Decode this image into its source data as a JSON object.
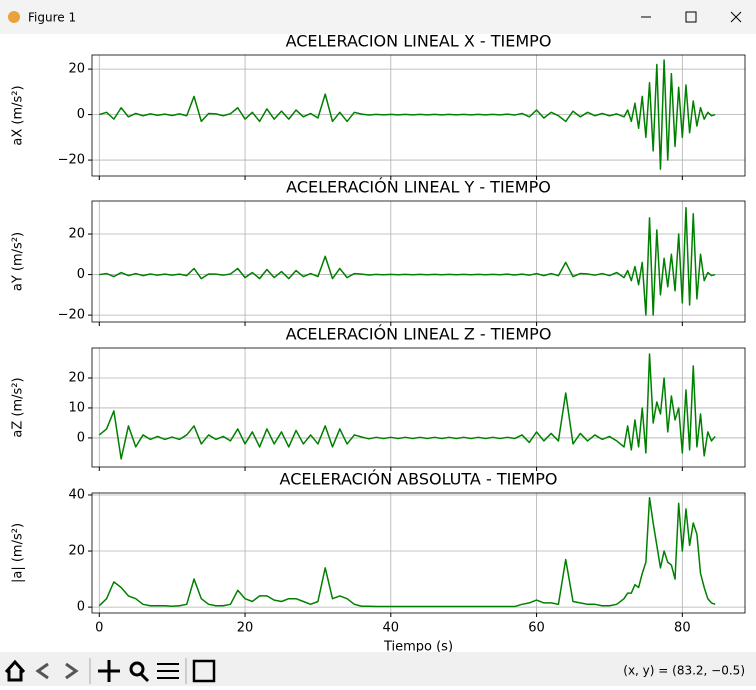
{
  "window": {
    "title": "Figure 1",
    "status": "(x, y) = (83.2, −0.5)"
  },
  "chart_data": [
    {
      "type": "line",
      "title": "ACELERACION LINEAL X - TIEMPO",
      "ylabel": "aX (m/s²)",
      "color": "#008000",
      "grid": true,
      "x": [
        0,
        1,
        2,
        3,
        4,
        5,
        6,
        7,
        8,
        9,
        10,
        11,
        12,
        13,
        14,
        15,
        16,
        17,
        18,
        19,
        20,
        21,
        22,
        23,
        24,
        25,
        26,
        27,
        28,
        29,
        30,
        31,
        32,
        33,
        34,
        35,
        36,
        37,
        38,
        39,
        40,
        41,
        42,
        43,
        44,
        45,
        46,
        47,
        48,
        49,
        50,
        51,
        52,
        53,
        54,
        55,
        56,
        57,
        58,
        59,
        60,
        61,
        62,
        63,
        64,
        65,
        66,
        67,
        68,
        69,
        70,
        71,
        72,
        72.5,
        73,
        73.5,
        74,
        74.5,
        75,
        75.5,
        76,
        76.5,
        77,
        77.5,
        78,
        78.5,
        79,
        79.5,
        80,
        80.5,
        81,
        81.5,
        82,
        82.5,
        83,
        83.5,
        84,
        84.5
      ],
      "values": [
        0,
        1,
        -2,
        3,
        -1,
        0.5,
        -0.5,
        0.3,
        -0.3,
        0.2,
        -0.4,
        0.3,
        -0.5,
        8,
        -3,
        0.5,
        0.3,
        -0.5,
        0.4,
        3,
        -2,
        1,
        -3,
        2.5,
        -2,
        1.5,
        -2,
        2,
        -1,
        0.5,
        -1.5,
        9,
        -3,
        1,
        -3,
        1,
        0.2,
        -0.2,
        0.1,
        -0.1,
        0.1,
        -0.1,
        0.1,
        -0.1,
        0.1,
        -0.1,
        0.1,
        -0.1,
        0.1,
        -0.1,
        0.1,
        -0.1,
        0.1,
        -0.1,
        0.1,
        -0.1,
        0.2,
        -0.2,
        0.5,
        -1,
        2,
        -1.5,
        1,
        -0.5,
        -3,
        1.5,
        -1,
        1,
        -0.5,
        0.5,
        -0.5,
        0.3,
        -1,
        2,
        -3,
        5,
        -6,
        8,
        -10,
        14,
        -16,
        22,
        -24,
        24,
        -20,
        18,
        -14,
        12,
        -10,
        13,
        -8,
        6,
        -5,
        3,
        -2,
        1,
        -0.5,
        0
      ],
      "xlim": [
        -1,
        88.6
      ],
      "ylim": [
        -27,
        26.2
      ],
      "xticks": [
        0,
        20,
        40,
        60,
        80
      ],
      "yticks": [
        {
          "value": -20,
          "label": "−20"
        },
        0,
        20
      ]
    },
    {
      "type": "line",
      "title": "ACELERACIÓN LINEAL Y - TIEMPO",
      "ylabel": "aY (m/s²)",
      "color": "#008000",
      "grid": true,
      "x": [
        0,
        1,
        2,
        3,
        4,
        5,
        6,
        7,
        8,
        9,
        10,
        11,
        12,
        13,
        14,
        15,
        16,
        17,
        18,
        19,
        20,
        21,
        22,
        23,
        24,
        25,
        26,
        27,
        28,
        29,
        30,
        31,
        32,
        33,
        34,
        35,
        36,
        37,
        38,
        39,
        40,
        41,
        42,
        43,
        44,
        45,
        46,
        47,
        48,
        49,
        50,
        51,
        52,
        53,
        54,
        55,
        56,
        57,
        58,
        59,
        60,
        61,
        62,
        63,
        64,
        65,
        66,
        67,
        68,
        69,
        70,
        71,
        72,
        72.5,
        73,
        73.5,
        74,
        74.5,
        75,
        75.5,
        76,
        76.5,
        77,
        77.5,
        78,
        78.5,
        79,
        79.5,
        80,
        80.5,
        81,
        81.5,
        82,
        82.5,
        83,
        83.5,
        84,
        84.5
      ],
      "values": [
        0,
        0.5,
        -1,
        1,
        -0.5,
        0.5,
        -0.5,
        0.3,
        -0.3,
        0.2,
        -0.3,
        0.2,
        -0.5,
        3,
        -2,
        0.3,
        0.2,
        -0.3,
        0.3,
        3,
        -1.5,
        1,
        -2,
        2.5,
        -1.5,
        1.5,
        -2,
        2,
        -1,
        0.5,
        -1,
        9,
        -2,
        3,
        -1.5,
        0.5,
        0.2,
        -0.2,
        0.1,
        -0.1,
        0.1,
        -0.1,
        0.1,
        -0.1,
        0.1,
        -0.1,
        0.1,
        -0.1,
        0.1,
        -0.1,
        0.1,
        -0.1,
        0.1,
        -0.1,
        0.1,
        -0.1,
        0.2,
        -0.2,
        0.2,
        -0.3,
        0.5,
        -0.5,
        0.5,
        -0.5,
        6,
        -1,
        0.5,
        0.3,
        -0.3,
        0.5,
        -0.5,
        1,
        -1.5,
        2,
        -3,
        4,
        -5,
        6,
        -20,
        28,
        -20,
        22,
        -10,
        8,
        -6,
        10,
        -8,
        20,
        -14,
        33,
        -15,
        30,
        -12,
        10,
        -3,
        1,
        -0.5,
        0
      ],
      "xlim": [
        -1,
        88.6
      ],
      "ylim": [
        -23.4,
        36.3
      ],
      "xticks": [
        0,
        20,
        40,
        60,
        80
      ],
      "yticks": [
        {
          "value": -20,
          "label": "−20"
        },
        0,
        20
      ]
    },
    {
      "type": "line",
      "title": "ACELERACIÓN LINEAL Z - TIEMPO",
      "ylabel": "aZ (m/s²)",
      "color": "#008000",
      "grid": true,
      "x": [
        0,
        1,
        2,
        3,
        4,
        5,
        6,
        7,
        8,
        9,
        10,
        11,
        12,
        13,
        14,
        15,
        16,
        17,
        18,
        19,
        20,
        21,
        22,
        23,
        24,
        25,
        26,
        27,
        28,
        29,
        30,
        31,
        32,
        33,
        34,
        35,
        36,
        37,
        38,
        39,
        40,
        41,
        42,
        43,
        44,
        45,
        46,
        47,
        48,
        49,
        50,
        51,
        52,
        53,
        54,
        55,
        56,
        57,
        58,
        59,
        60,
        61,
        62,
        63,
        64,
        65,
        66,
        67,
        68,
        69,
        70,
        71,
        72,
        72.5,
        73,
        73.5,
        74,
        74.5,
        75,
        75.5,
        76,
        76.5,
        77,
        77.5,
        78,
        78.5,
        79,
        79.5,
        80,
        80.5,
        81,
        81.5,
        82,
        82.5,
        83,
        83.5,
        84,
        84.5
      ],
      "values": [
        1,
        3,
        9,
        -7,
        4,
        -3,
        1,
        -0.5,
        0.5,
        -0.5,
        0.3,
        -0.5,
        1,
        4,
        -2,
        1,
        -0.5,
        0.5,
        -1,
        3,
        -2,
        2,
        -3,
        3,
        -2,
        2,
        -3,
        2.5,
        -2,
        1,
        -2,
        4,
        -3,
        3,
        -2,
        1,
        0.3,
        -0.3,
        0.2,
        -0.2,
        0.2,
        -0.2,
        0.2,
        -0.2,
        0.2,
        -0.2,
        0.2,
        -0.2,
        0.2,
        -0.2,
        0.2,
        -0.2,
        0.2,
        -0.2,
        0.2,
        -0.2,
        0.2,
        -0.2,
        1,
        -1.5,
        2,
        -1,
        1.5,
        -1,
        15,
        -2,
        1.5,
        -1,
        1,
        -0.5,
        0.5,
        -1,
        -3,
        4,
        -4,
        6,
        -3,
        10,
        -5,
        28,
        5,
        12,
        8,
        20,
        2,
        14,
        6,
        10,
        -5,
        16,
        -4,
        24,
        -3,
        8,
        -6,
        2,
        -1,
        0.5
      ],
      "xlim": [
        -1,
        88.6
      ],
      "ylim": [
        -9.7,
        30
      ],
      "xticks": [
        0,
        20,
        40,
        60,
        80
      ],
      "yticks": [
        0,
        10,
        20
      ]
    },
    {
      "type": "line",
      "title": "ACELERACIÓN ABSOLUTA - TIEMPO",
      "ylabel": "|a| (m/s²)",
      "xlabel": "Tiempo (s)",
      "color": "#008000",
      "grid": true,
      "x": [
        0,
        1,
        2,
        3,
        4,
        5,
        6,
        7,
        8,
        9,
        10,
        11,
        12,
        13,
        14,
        15,
        16,
        17,
        18,
        19,
        20,
        21,
        22,
        23,
        24,
        25,
        26,
        27,
        28,
        29,
        30,
        31,
        32,
        33,
        34,
        35,
        36,
        37,
        38,
        39,
        40,
        41,
        42,
        43,
        44,
        45,
        46,
        47,
        48,
        49,
        50,
        51,
        52,
        53,
        54,
        55,
        56,
        57,
        58,
        59,
        60,
        61,
        62,
        63,
        64,
        65,
        66,
        67,
        68,
        69,
        70,
        71,
        72,
        72.5,
        73,
        73.5,
        74,
        74.5,
        75,
        75.5,
        76,
        76.5,
        77,
        77.5,
        78,
        78.5,
        79,
        79.5,
        80,
        80.5,
        81,
        81.5,
        82,
        82.5,
        83,
        83.5,
        84,
        84.5
      ],
      "values": [
        0.5,
        3,
        9,
        7,
        4,
        3,
        1,
        0.5,
        0.5,
        0.5,
        0.3,
        0.5,
        1,
        10,
        3,
        1,
        0.5,
        0.5,
        1,
        6,
        3,
        2,
        4,
        4,
        2.5,
        2,
        3,
        3,
        2,
        1,
        2,
        14,
        3,
        4,
        3,
        1,
        0.3,
        0.3,
        0.2,
        0.2,
        0.2,
        0.2,
        0.2,
        0.2,
        0.2,
        0.2,
        0.2,
        0.2,
        0.2,
        0.2,
        0.2,
        0.2,
        0.2,
        0.2,
        0.2,
        0.2,
        0.2,
        0.2,
        1,
        1.5,
        2.5,
        1.5,
        1.5,
        1,
        17,
        2,
        1.5,
        1,
        1,
        0.5,
        0.5,
        1,
        3,
        5,
        5,
        8,
        7,
        12,
        16,
        39,
        30,
        22,
        14,
        20,
        16,
        15,
        10,
        37,
        20,
        35,
        22,
        30,
        26,
        12,
        7,
        3,
        1.5,
        1
      ],
      "xlim": [
        -1,
        88.6
      ],
      "ylim": [
        -2.1,
        40.7
      ],
      "xticks": [
        0,
        20,
        40,
        60,
        80
      ],
      "yticks": [
        0,
        20,
        40
      ]
    }
  ]
}
